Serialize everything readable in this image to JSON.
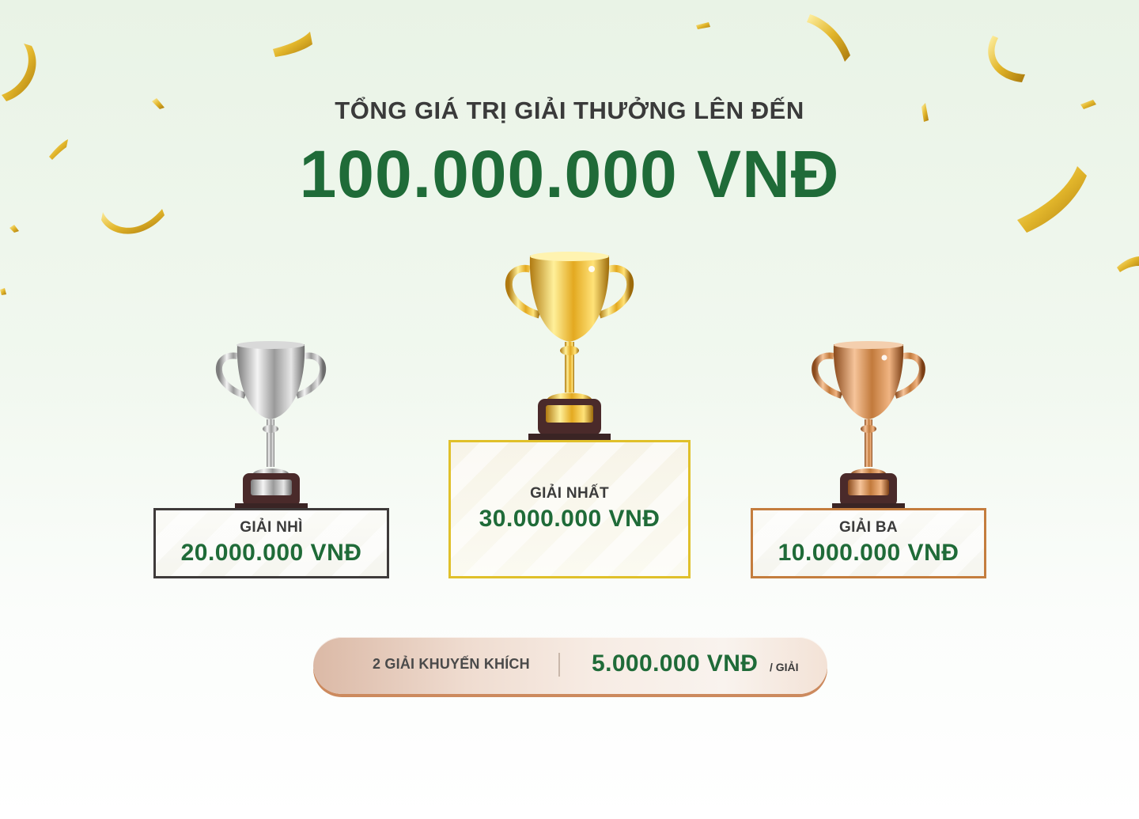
{
  "heading": {
    "subtitle": "TỔNG GIÁ TRỊ GIẢI THƯỞNG LÊN ĐẾN",
    "total": "100.000.000 VNĐ"
  },
  "prizes": {
    "second": {
      "label": "GIẢI NHÌ",
      "amount": "20.000.000 VNĐ",
      "color": "#3e3a3a",
      "trophy": "silver-trophy-icon"
    },
    "first": {
      "label": "GIẢI NHẤT",
      "amount": "30.000.000 VNĐ",
      "color": "#e0c02a",
      "trophy": "gold-trophy-icon"
    },
    "third": {
      "label": "GIẢI BA",
      "amount": "10.000.000 VNĐ",
      "color": "#c47d3e",
      "trophy": "bronze-trophy-icon"
    }
  },
  "consolation": {
    "label": "2 GIẢI KHUYẾN KHÍCH",
    "amount": "5.000.000 VNĐ",
    "unit": "/ GIẢI"
  },
  "colors": {
    "accent_green": "#1f6b38",
    "confetti_gold": "#e2b62b"
  }
}
